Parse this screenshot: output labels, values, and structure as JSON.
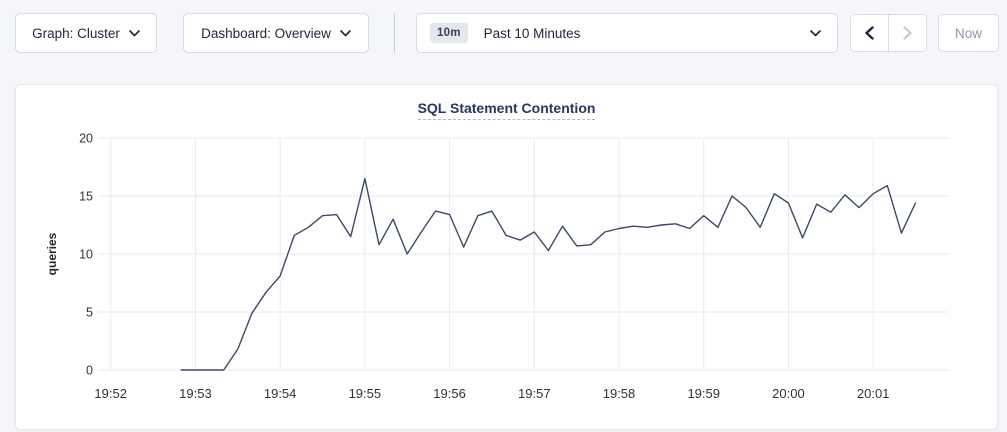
{
  "toolbar": {
    "graph_dropdown": "Graph: Cluster",
    "dashboard_dropdown": "Dashboard: Overview",
    "time_badge": "10m",
    "time_label": "Past 10 Minutes",
    "now_label": "Now"
  },
  "icons": {
    "chevron_down": "v-shape",
    "chevron_left": "<",
    "chevron_right": ">"
  },
  "colors": {
    "page_bg": "#f4f6fa",
    "title_navy": "#27375f",
    "line": "#3b4a68",
    "grid": "#e9eaee",
    "tick_text": "#2f3338",
    "disabled_text": "#8e96a5"
  },
  "chart_data": {
    "type": "line",
    "title": "SQL Statement Contention",
    "xlabel": "",
    "ylabel": "queries",
    "ylim": [
      0,
      20
    ],
    "y_ticks": [
      0,
      5,
      10,
      15,
      20
    ],
    "x_ticks": [
      "19:52",
      "19:53",
      "19:54",
      "19:55",
      "19:56",
      "19:57",
      "19:58",
      "19:59",
      "20:00",
      "20:01"
    ],
    "grid": true,
    "legend": "none",
    "line_color": "#3b4a68",
    "series": [
      {
        "name": "queries",
        "times": [
          "19:52:50",
          "19:53:00",
          "19:53:10",
          "19:53:20",
          "19:53:30",
          "19:53:40",
          "19:53:50",
          "19:54:00",
          "19:54:10",
          "19:54:20",
          "19:54:30",
          "19:54:40",
          "19:54:50",
          "19:55:00",
          "19:55:10",
          "19:55:20",
          "19:55:30",
          "19:55:40",
          "19:55:50",
          "19:56:00",
          "19:56:10",
          "19:56:20",
          "19:56:30",
          "19:56:40",
          "19:56:50",
          "19:57:00",
          "19:57:10",
          "19:57:20",
          "19:57:30",
          "19:57:40",
          "19:57:50",
          "19:58:00",
          "19:58:10",
          "19:58:20",
          "19:58:30",
          "19:58:40",
          "19:58:50",
          "19:59:00",
          "19:59:10",
          "19:59:20",
          "19:59:30",
          "19:59:40",
          "19:59:50",
          "20:00:00",
          "20:00:10",
          "20:00:20",
          "20:00:30",
          "20:00:40",
          "20:00:50",
          "20:01:00",
          "20:01:10",
          "20:01:20",
          "20:01:30"
        ],
        "values": [
          0,
          0,
          0,
          0,
          1.8,
          4.9,
          6.7,
          8.1,
          11.6,
          12.3,
          13.3,
          13.4,
          11.5,
          16.5,
          10.8,
          13.0,
          10.0,
          11.9,
          13.7,
          13.4,
          10.6,
          13.3,
          13.7,
          11.6,
          11.2,
          11.9,
          10.3,
          12.4,
          10.7,
          10.8,
          11.9,
          12.2,
          12.4,
          12.3,
          12.5,
          12.6,
          12.2,
          13.3,
          12.3,
          15.0,
          14.0,
          12.3,
          15.2,
          14.4,
          11.4,
          14.3,
          13.6,
          15.1,
          14.0,
          15.2,
          15.9,
          11.8,
          14.4
        ]
      }
    ]
  }
}
